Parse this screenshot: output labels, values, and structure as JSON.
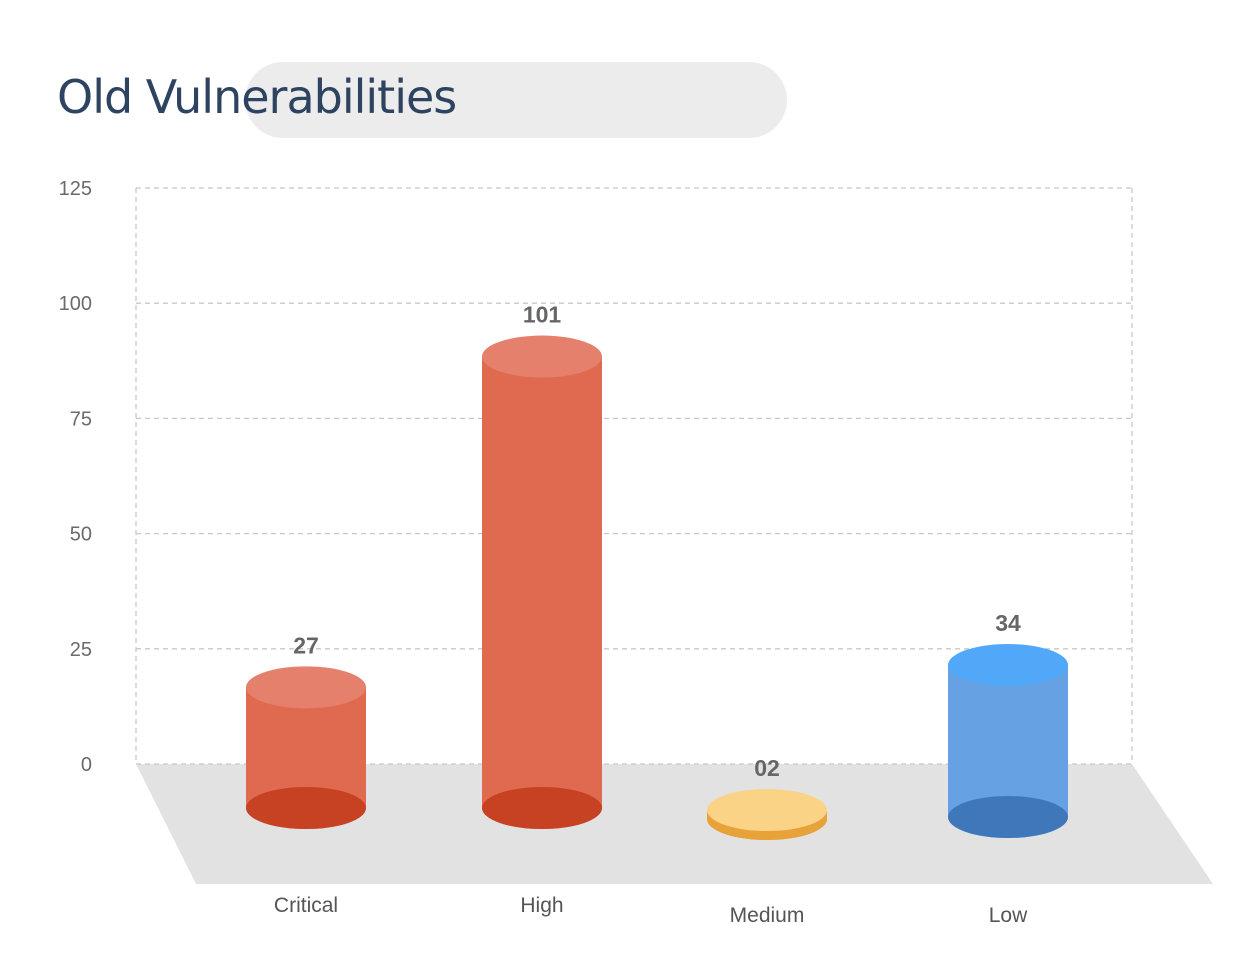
{
  "header": {
    "title": "Old Vulnerabilities"
  },
  "chart_data": {
    "type": "bar",
    "title": "Old Vulnerabilities",
    "xlabel": "",
    "ylabel": "",
    "categories": [
      "Critical",
      "High",
      "Medium",
      "Low"
    ],
    "values": [
      27,
      101,
      2,
      34
    ],
    "value_labels": [
      "27",
      "101",
      "02",
      "34"
    ],
    "ylim": [
      0,
      125
    ],
    "yticks": [
      0,
      25,
      50,
      75,
      100,
      125
    ],
    "grid": true,
    "colors": {
      "Critical": {
        "body": "#e06a4f",
        "top": "#e4806b",
        "bottom": "#c64222"
      },
      "High": {
        "body": "#e06a4f",
        "top": "#e4806b",
        "bottom": "#c64222"
      },
      "Medium": {
        "body": "#e8a23a",
        "top": "#fad387",
        "bottom": "#e8a23a"
      },
      "Low": {
        "body": "#66a1e3",
        "top": "#52a8f8",
        "bottom": "#3f77ba"
      }
    },
    "floor_color": "#e2e2e2",
    "grid_color": "#c8c8c8"
  }
}
